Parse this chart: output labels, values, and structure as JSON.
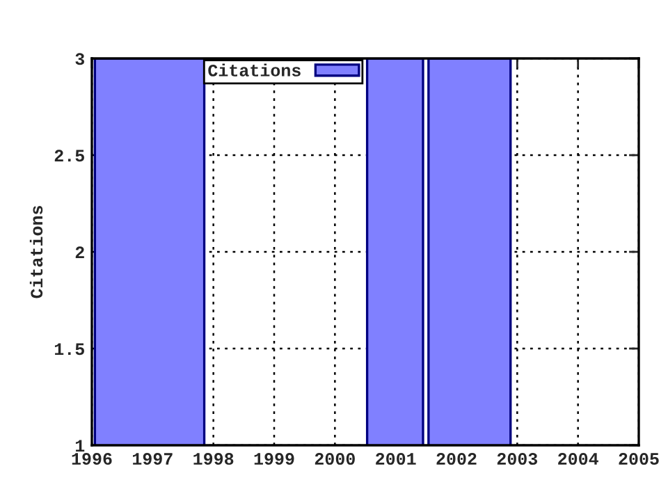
{
  "chart_data": {
    "type": "histogram",
    "ylabel": "Citations",
    "series": [
      {
        "name": "Citations",
        "color": "#8080ff",
        "values": [
          3,
          null,
          3,
          null,
          3
        ]
      }
    ],
    "bins": [
      1996.05,
      1997.85,
      2000.53,
      2001.45,
      2001.54,
      2002.89
    ],
    "xlim": [
      1996,
      2005
    ],
    "xticks": [
      1996,
      1997,
      1998,
      1999,
      2000,
      2001,
      2002,
      2003,
      2004,
      2005
    ],
    "ylim": [
      1,
      3
    ],
    "yticks": [
      1,
      1.5,
      2,
      2.5,
      3
    ],
    "grid": true,
    "legend": "top"
  }
}
